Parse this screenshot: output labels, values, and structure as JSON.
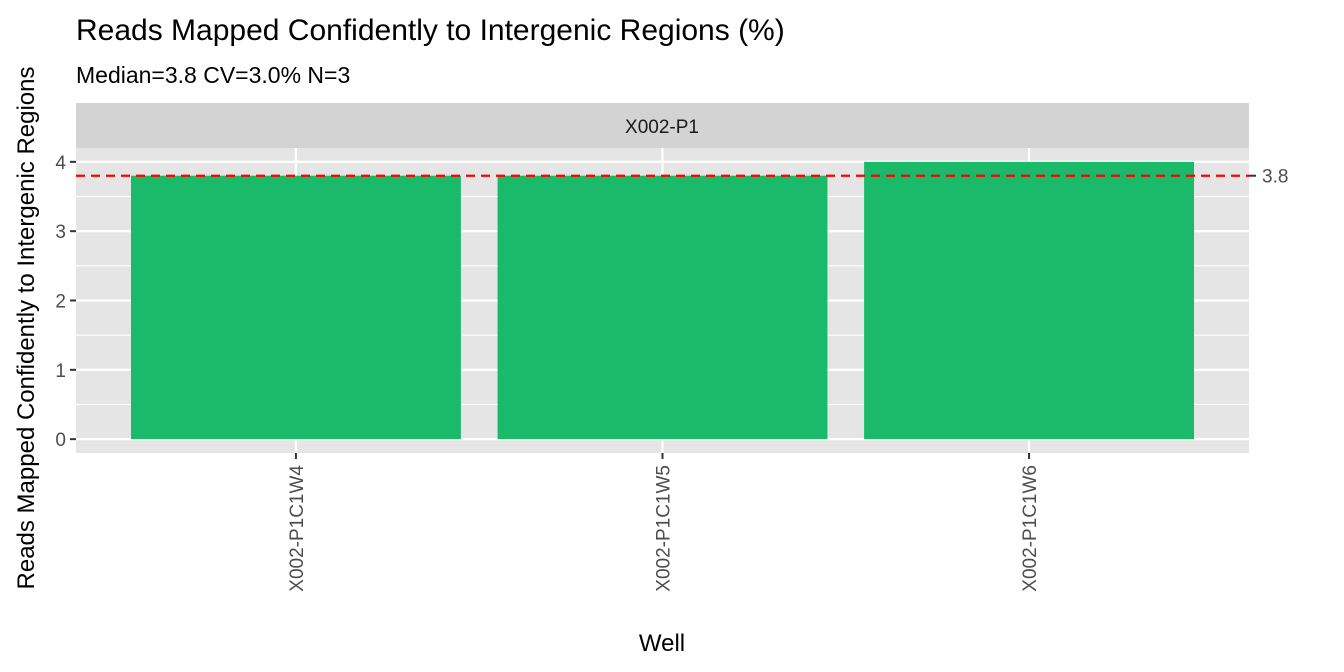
{
  "chart_data": {
    "type": "bar",
    "title": "Reads Mapped Confidently to Intergenic Regions (%)",
    "subtitle": "Median=3.8    CV=3.0%    N=3",
    "facet_label": "X002-P1",
    "xlabel": "Well",
    "ylabel": "Reads Mapped Confidently to Intergenic Regions",
    "categories": [
      "X002-P1C1W4",
      "X002-P1C1W5",
      "X002-P1C1W6"
    ],
    "values": [
      3.8,
      3.8,
      4.0
    ],
    "ylim": [
      -0.2,
      4.2
    ],
    "yticks": [
      0,
      1,
      2,
      3,
      4
    ],
    "reference_line": {
      "value": 3.8,
      "label": "3.8",
      "style": "dashed"
    },
    "grid": true
  },
  "colors": {
    "bar": "#1aba6a",
    "panel_bg": "#e5e5e5",
    "strip_bg": "#d3d3d3",
    "grid": "#ffffff",
    "reference_line": "#ff0000"
  }
}
